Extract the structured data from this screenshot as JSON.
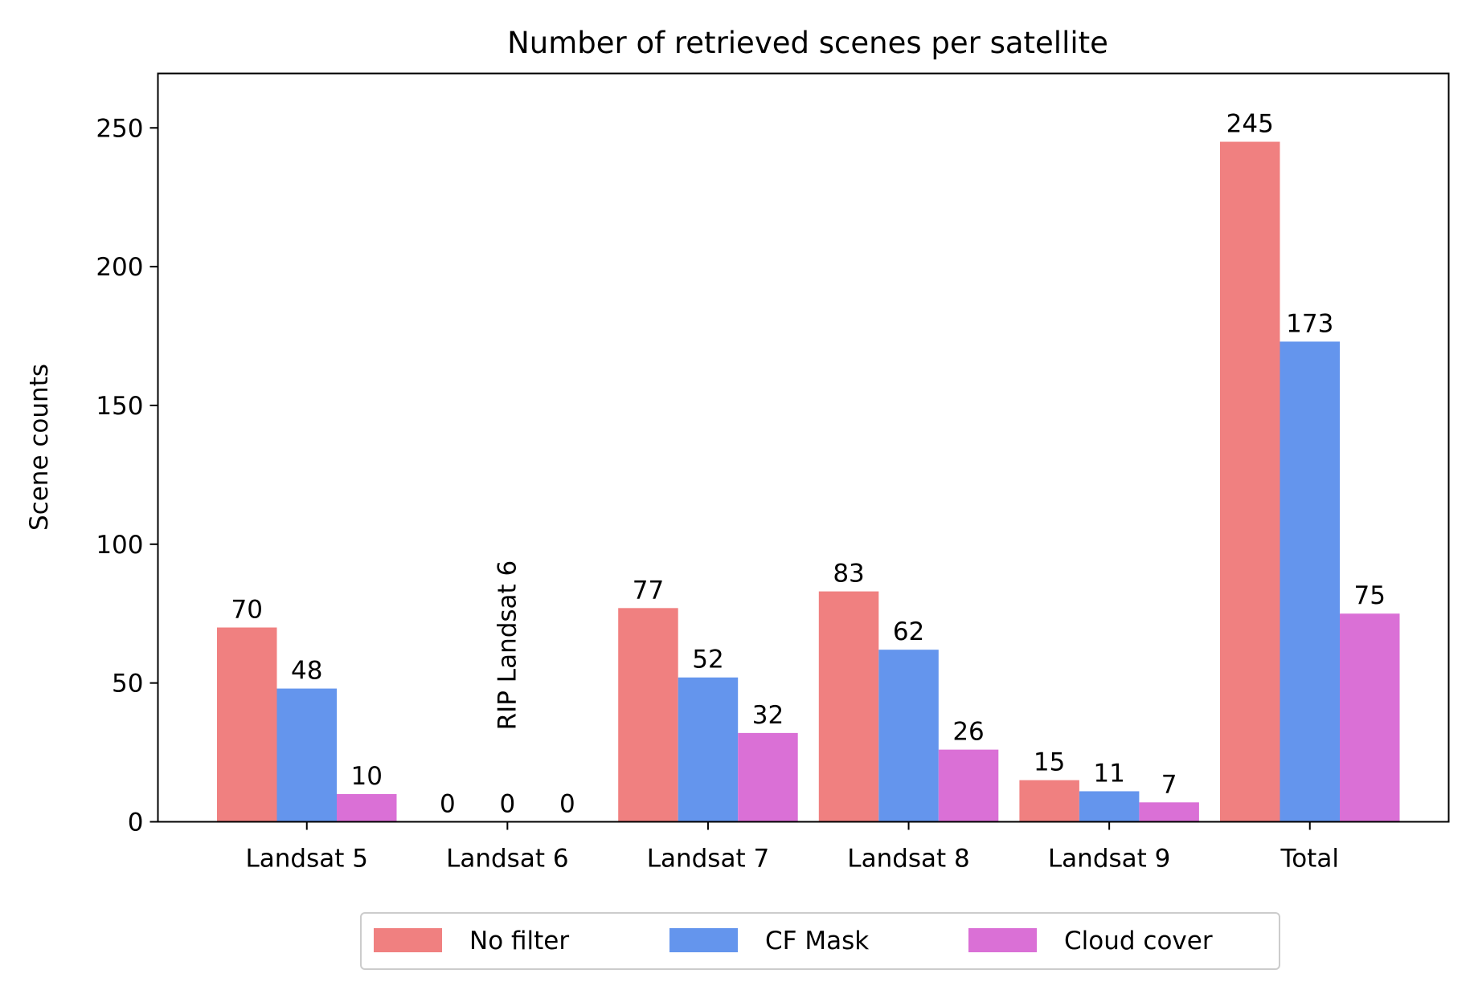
{
  "chart_data": {
    "type": "bar",
    "title": "Number of retrieved scenes per satellite",
    "xlabel": "",
    "ylabel": "Scene counts",
    "categories": [
      "Landsat 5",
      "Landsat 6",
      "Landsat 7",
      "Landsat 8",
      "Landsat 9",
      "Total"
    ],
    "series": [
      {
        "name": "No filter",
        "color": "#F08080",
        "values": [
          70,
          0,
          77,
          83,
          15,
          245
        ]
      },
      {
        "name": "CF Mask",
        "color": "#6495ED",
        "values": [
          48,
          0,
          52,
          62,
          11,
          173
        ]
      },
      {
        "name": "Cloud cover",
        "color": "#DA70D6",
        "values": [
          10,
          0,
          32,
          26,
          7,
          75
        ]
      }
    ],
    "ylim": [
      0,
      270
    ],
    "yticks": [
      0,
      50,
      100,
      150,
      200,
      250
    ],
    "grid": false,
    "legend_position": "bottom-center",
    "annotation": {
      "text": "RIP Landsat 6",
      "category": "Landsat 6",
      "value": 33,
      "rotation": "vertical"
    }
  }
}
